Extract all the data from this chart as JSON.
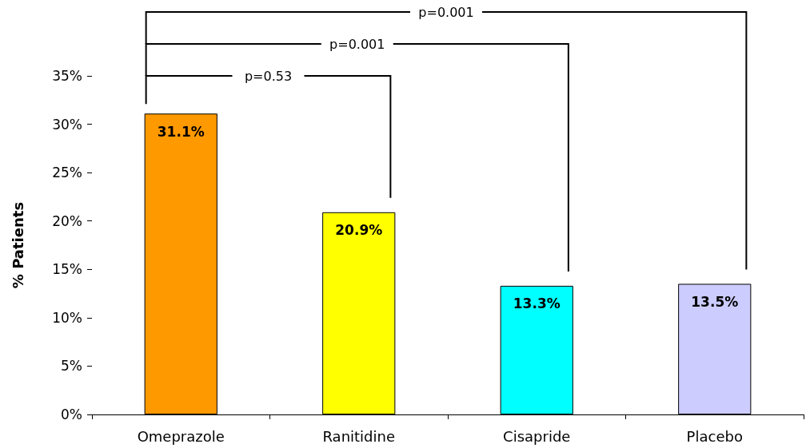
{
  "chart_data": {
    "type": "bar",
    "ylabel": "% Patients",
    "categories": [
      "Omeprazole",
      "Ranitidine",
      "Cisapride",
      "Placebo"
    ],
    "values": [
      31.1,
      20.9,
      13.3,
      13.5
    ],
    "colors": [
      "#ff9900",
      "#ffff00",
      "#00ffff",
      "#ccccff"
    ],
    "value_labels": [
      "31.1%",
      "20.9%",
      "13.3%",
      "13.5%"
    ],
    "ylim": [
      0,
      35
    ],
    "yticks": [
      {
        "value": 0,
        "label": "0%"
      },
      {
        "value": 5,
        "label": "5%"
      },
      {
        "value": 10,
        "label": "10%"
      },
      {
        "value": 15,
        "label": "15%"
      },
      {
        "value": 20,
        "label": "20%"
      },
      {
        "value": 25,
        "label": "25%"
      },
      {
        "value": 30,
        "label": "30%"
      },
      {
        "value": 35,
        "label": "35%"
      }
    ],
    "annotations": [
      "p=0.53",
      "p=0.001",
      "p=0.001"
    ],
    "grid": false
  }
}
